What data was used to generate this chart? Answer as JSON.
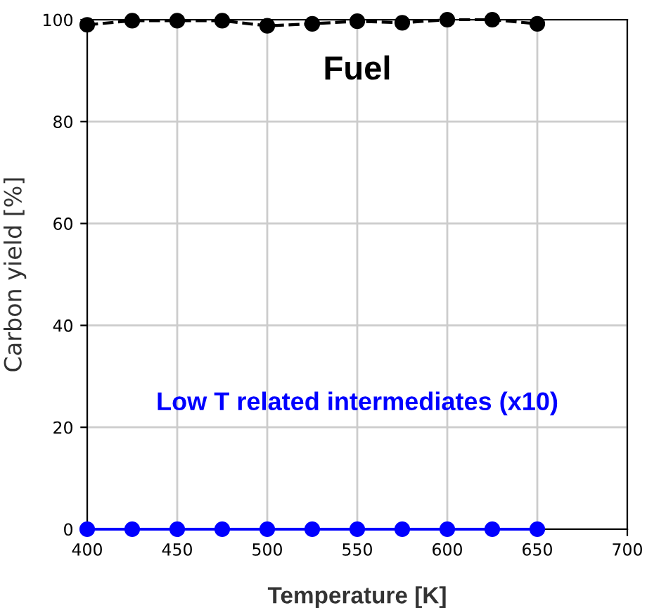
{
  "chart_data": {
    "type": "line",
    "xlabel": "Temperature [K]",
    "ylabel": "Carbon yield [%]",
    "x": [
      400,
      425,
      450,
      475,
      500,
      525,
      550,
      575,
      600,
      625,
      650
    ],
    "series": [
      {
        "name": "Fuel",
        "color": "#000000",
        "line_style": "dashed",
        "values": [
          99,
          99.8,
          99.8,
          99.8,
          98.8,
          99.2,
          99.7,
          99.4,
          100,
          100,
          99.2
        ]
      },
      {
        "name": "Low T related intermediates (x10)",
        "color": "#0000ff",
        "line_style": "solid",
        "values": [
          0,
          0,
          0,
          0,
          0,
          0,
          0,
          0,
          0,
          0,
          0
        ]
      }
    ],
    "marker": "circle",
    "xlim": [
      400,
      700
    ],
    "xticks": [
      400,
      450,
      500,
      550,
      600,
      650,
      700
    ],
    "ylim": [
      0,
      100
    ],
    "yticks": [
      0,
      20,
      40,
      60,
      80,
      100
    ],
    "grid": true,
    "legend": false
  }
}
